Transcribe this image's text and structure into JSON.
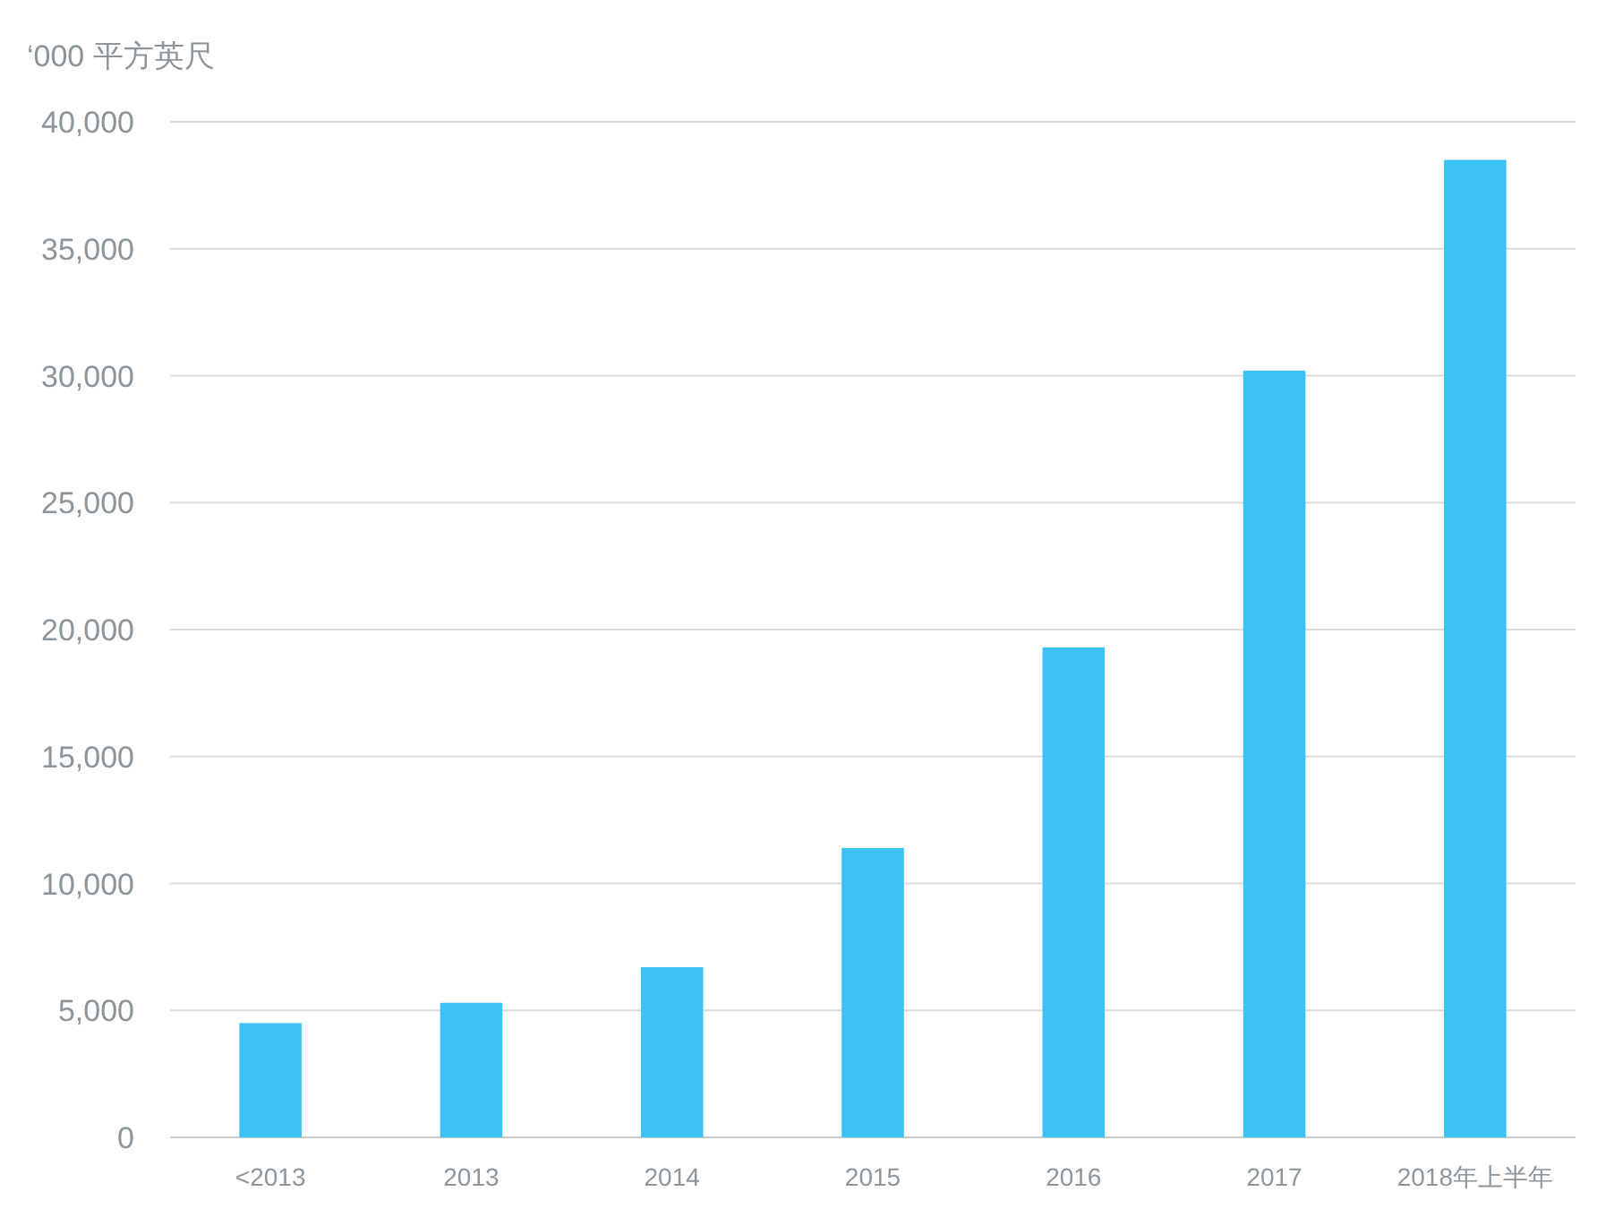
{
  "chart_data": {
    "type": "bar",
    "ylabel": "‘000 平方英尺",
    "categories": [
      "<2013",
      "2013",
      "2014",
      "2015",
      "2016",
      "2017",
      "2018年上半年"
    ],
    "values": [
      4500,
      5300,
      6700,
      11400,
      19300,
      30200,
      38500
    ],
    "color": "#3bc1f2",
    "ylim": [
      0,
      40000
    ],
    "yticks": [
      {
        "value": 0,
        "label": "0"
      },
      {
        "value": 5000,
        "label": "5,000"
      },
      {
        "value": 10000,
        "label": "10,000"
      },
      {
        "value": 15000,
        "label": "15,000"
      },
      {
        "value": 20000,
        "label": "20,000"
      },
      {
        "value": 25000,
        "label": "25,000"
      },
      {
        "value": 30000,
        "label": "30,000"
      },
      {
        "value": 35000,
        "label": "35,000"
      },
      {
        "value": 40000,
        "label": "40,000"
      }
    ],
    "grid": "y"
  }
}
